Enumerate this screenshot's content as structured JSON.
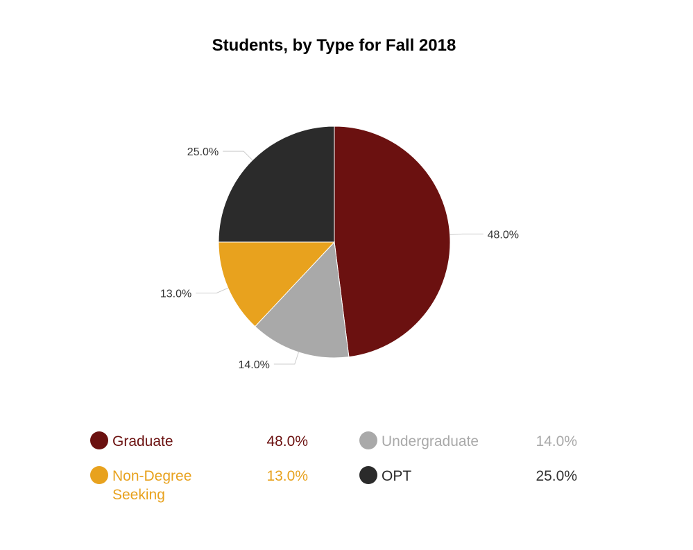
{
  "chart_data": {
    "type": "pie",
    "title": "Students, by Type for Fall 2018",
    "slices": [
      {
        "name": "Graduate",
        "value": 48.0,
        "label": "48.0%",
        "color": "#6b1110"
      },
      {
        "name": "Undergraduate",
        "value": 14.0,
        "label": "14.0%",
        "color": "#a9a9a9"
      },
      {
        "name": "Non-Degree Seeking",
        "value": 13.0,
        "label": "13.0%",
        "color": "#e8a21e"
      },
      {
        "name": "OPT",
        "value": 25.0,
        "label": "25.0%",
        "color": "#2b2b2b"
      }
    ],
    "legend_position": "bottom"
  },
  "legend": {
    "items": [
      {
        "label": "Graduate",
        "value": "48.0%",
        "color": "#6b1110"
      },
      {
        "label": "Undergraduate",
        "value": "14.0%",
        "color": "#a9a9a9"
      },
      {
        "label": "Non-Degree Seeking",
        "value": "13.0%",
        "color": "#e8a21e"
      },
      {
        "label": "OPT",
        "value": "25.0%",
        "color": "#2b2b2b"
      }
    ]
  }
}
